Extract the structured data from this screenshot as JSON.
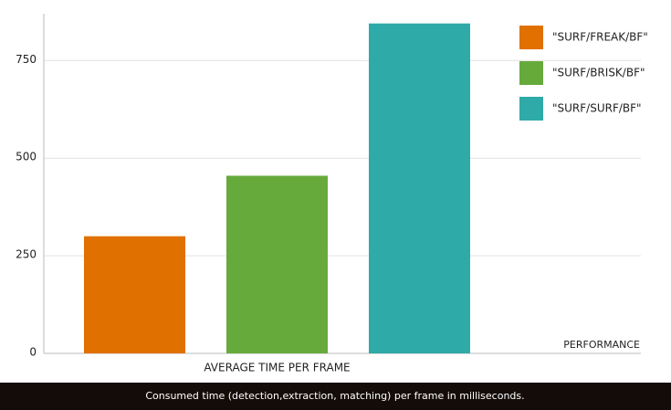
{
  "chart_data": {
    "type": "bar",
    "xlabel": "PERFORMANCE",
    "caption": "Consumed time (detection,extraction, matching) per frame in milliseconds.",
    "categories": [
      "AVERAGE TIME PER FRAME"
    ],
    "series": [
      {
        "name": "\"SURF/FREAK/BF\"",
        "color": "#e07000",
        "values": [
          300
        ]
      },
      {
        "name": "\"SURF/BRISK/BF\"",
        "color": "#66aa3c",
        "values": [
          455
        ]
      },
      {
        "name": "\"SURF/SURF/BF\"",
        "color": "#2eaaa8",
        "values": [
          845
        ]
      }
    ],
    "ylim": [
      0,
      870
    ],
    "yticks": [
      0,
      250,
      500,
      750
    ],
    "grid": true,
    "legend": "top-right"
  }
}
